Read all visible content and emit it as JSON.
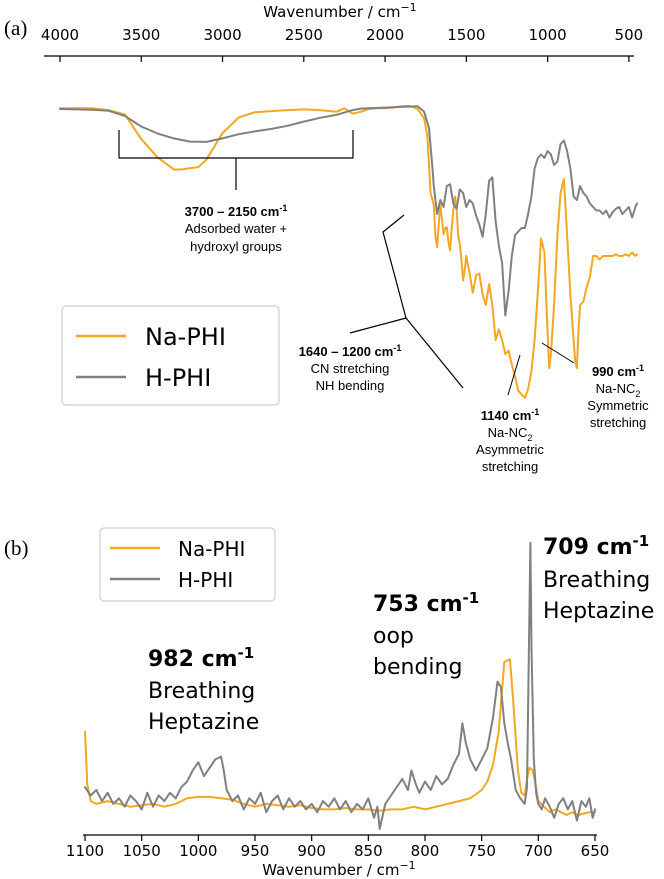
{
  "chart_data": [
    {
      "type": "line",
      "panel_label": "(a)",
      "xlabel": "Wavenumber / cm",
      "xlabel_sup": "−1",
      "xlim": [
        4000,
        450
      ],
      "x_ticks": [
        4000,
        3500,
        3000,
        2500,
        2000,
        1500,
        1000,
        500
      ],
      "x_tick_labels": [
        "4000",
        "3500",
        "3000",
        "2500",
        "2000",
        "1500",
        "1000",
        "500"
      ],
      "ylim": [
        0,
        1
      ],
      "legend": {
        "placement": "lower-left",
        "entries": [
          "Na-PHI",
          "H-PHI"
        ]
      },
      "series": [
        {
          "name": "Na-PHI",
          "color": "#F5A623",
          "x": [
            4000,
            3800,
            3700,
            3600,
            3500,
            3400,
            3300,
            3250,
            3200,
            3150,
            3100,
            3000,
            2900,
            2800,
            2700,
            2600,
            2500,
            2400,
            2300,
            2250,
            2200,
            2150,
            2100,
            2050,
            2000,
            1950,
            1900,
            1850,
            1800,
            1760,
            1740,
            1720,
            1700,
            1690,
            1680,
            1670,
            1660,
            1650,
            1640,
            1630,
            1620,
            1610,
            1600,
            1590,
            1580,
            1570,
            1560,
            1550,
            1540,
            1530,
            1520,
            1510,
            1500,
            1480,
            1460,
            1440,
            1420,
            1400,
            1380,
            1360,
            1340,
            1320,
            1300,
            1280,
            1260,
            1240,
            1220,
            1200,
            1180,
            1160,
            1140,
            1120,
            1100,
            1080,
            1060,
            1040,
            1020,
            1000,
            990,
            980,
            960,
            940,
            920,
            900,
            880,
            860,
            840,
            830,
            820,
            810,
            800,
            780,
            760,
            740,
            720,
            700,
            680,
            660,
            640,
            620,
            600,
            580,
            560,
            540,
            520,
            500,
            480,
            460,
            450
          ],
          "y": [
            0.862,
            0.862,
            0.857,
            0.844,
            0.774,
            0.722,
            0.687,
            0.687,
            0.691,
            0.694,
            0.715,
            0.791,
            0.836,
            0.851,
            0.854,
            0.857,
            0.859,
            0.857,
            0.852,
            0.862,
            0.847,
            0.852,
            0.86,
            0.862,
            0.862,
            0.864,
            0.868,
            0.869,
            0.86,
            0.833,
            0.784,
            0.62,
            0.586,
            0.493,
            0.466,
            0.531,
            0.588,
            0.544,
            0.502,
            0.52,
            0.522,
            0.479,
            0.456,
            0.519,
            0.571,
            0.61,
            0.576,
            0.498,
            0.475,
            0.428,
            0.37,
            0.4,
            0.44,
            0.39,
            0.335,
            0.385,
            0.39,
            0.33,
            0.3,
            0.36,
            0.3,
            0.2,
            0.23,
            0.2,
            0.16,
            0.17,
            0.13,
            0.095,
            0.055,
            0.045,
            0.035,
            0.06,
            0.11,
            0.2,
            0.34,
            0.49,
            0.45,
            0.22,
            0.12,
            0.16,
            0.3,
            0.5,
            0.62,
            0.66,
            0.5,
            0.33,
            0.2,
            0.14,
            0.12,
            0.23,
            0.3,
            0.31,
            0.35,
            0.38,
            0.44,
            0.44,
            0.43,
            0.44,
            0.44,
            0.44,
            0.44,
            0.445,
            0.44,
            0.44,
            0.445,
            0.44,
            0.45,
            0.44,
            0.445
          ]
        },
        {
          "name": "H-PHI",
          "color": "#808080",
          "x": [
            4000,
            3800,
            3700,
            3600,
            3500,
            3400,
            3300,
            3200,
            3100,
            3000,
            2900,
            2800,
            2700,
            2600,
            2500,
            2400,
            2300,
            2200,
            2150,
            2100,
            2000,
            1900,
            1800,
            1760,
            1730,
            1710,
            1700,
            1680,
            1660,
            1640,
            1620,
            1600,
            1580,
            1560,
            1540,
            1520,
            1500,
            1480,
            1460,
            1440,
            1420,
            1400,
            1380,
            1360,
            1340,
            1320,
            1300,
            1280,
            1260,
            1240,
            1220,
            1200,
            1180,
            1160,
            1140,
            1120,
            1100,
            1080,
            1060,
            1040,
            1020,
            1000,
            980,
            960,
            940,
            920,
            900,
            880,
            860,
            840,
            820,
            800,
            780,
            760,
            740,
            720,
            700,
            680,
            660,
            640,
            620,
            600,
            580,
            560,
            540,
            520,
            500,
            480,
            460,
            450
          ],
          "y": [
            0.86,
            0.858,
            0.855,
            0.84,
            0.81,
            0.79,
            0.776,
            0.767,
            0.766,
            0.776,
            0.788,
            0.796,
            0.803,
            0.812,
            0.824,
            0.835,
            0.843,
            0.857,
            0.861,
            0.862,
            0.864,
            0.866,
            0.868,
            0.852,
            0.805,
            0.7,
            0.64,
            0.56,
            0.6,
            0.58,
            0.64,
            0.645,
            0.59,
            0.575,
            0.63,
            0.62,
            0.58,
            0.6,
            0.59,
            0.555,
            0.53,
            0.495,
            0.56,
            0.655,
            0.665,
            0.54,
            0.47,
            0.42,
            0.27,
            0.34,
            0.44,
            0.5,
            0.51,
            0.52,
            0.52,
            0.56,
            0.61,
            0.69,
            0.72,
            0.73,
            0.72,
            0.74,
            0.73,
            0.7,
            0.71,
            0.76,
            0.77,
            0.74,
            0.69,
            0.61,
            0.6,
            0.64,
            0.62,
            0.61,
            0.59,
            0.58,
            0.57,
            0.57,
            0.56,
            0.57,
            0.55,
            0.565,
            0.575,
            0.58,
            0.56,
            0.57,
            0.58,
            0.55,
            0.58,
            0.59
          ]
        }
      ],
      "annotations": [
        {
          "heading": "3700 – 2150 cm",
          "heading_sup": "-1",
          "lines": [
            "Adsorbed water +",
            "hydroxyl groups"
          ]
        },
        {
          "heading": "1640 – 1200 cm",
          "heading_sup": "-1",
          "lines": [
            "CN stretching",
            "NH bending"
          ]
        },
        {
          "heading": "1140 cm",
          "heading_sup": "-1",
          "lines": [
            "Na-NC",
            "Asymmetric",
            "stretching"
          ],
          "line1_sub": "2"
        },
        {
          "heading": "990 cm",
          "heading_sup": "-1",
          "lines": [
            "Na-NC",
            "Symmetric",
            "stretching"
          ],
          "line1_sub": "2"
        }
      ]
    },
    {
      "type": "line",
      "panel_label": "(b)",
      "xlabel": "Wavenumber / cm",
      "xlabel_sup": "−1",
      "xlim": [
        1100,
        650
      ],
      "x_ticks": [
        1100,
        1050,
        1000,
        950,
        900,
        850,
        800,
        750,
        700,
        650
      ],
      "x_tick_labels": [
        "1100",
        "1050",
        "1000",
        "950",
        "900",
        "850",
        "800",
        "750",
        "700",
        "650"
      ],
      "ylim": [
        0,
        1
      ],
      "legend": {
        "placement": "top-left",
        "entries": [
          "Na-PHI",
          "H-PHI"
        ]
      },
      "series": [
        {
          "name": "Na-PHI",
          "color": "#F5A623",
          "x": [
            1100,
            1098,
            1095,
            1090,
            1080,
            1070,
            1060,
            1050,
            1040,
            1030,
            1020,
            1010,
            1000,
            990,
            980,
            970,
            960,
            950,
            940,
            930,
            920,
            910,
            900,
            890,
            880,
            870,
            860,
            850,
            840,
            830,
            820,
            810,
            800,
            790,
            780,
            770,
            760,
            750,
            745,
            740,
            735,
            730,
            725,
            722,
            718,
            715,
            712,
            710,
            708,
            705,
            702,
            700,
            695,
            690,
            685,
            680,
            675,
            670,
            665,
            660,
            655,
            650
          ],
          "y": [
            0.3,
            0.11,
            0.05,
            0.04,
            0.05,
            0.04,
            0.03,
            0.035,
            0.04,
            0.03,
            0.04,
            0.06,
            0.065,
            0.065,
            0.06,
            0.055,
            0.04,
            0.03,
            0.04,
            0.035,
            0.03,
            0.035,
            0.025,
            0.02,
            0.02,
            0.025,
            0.02,
            0.02,
            0.015,
            0.02,
            0.02,
            0.03,
            0.02,
            0.03,
            0.04,
            0.05,
            0.06,
            0.09,
            0.12,
            0.18,
            0.3,
            0.55,
            0.56,
            0.4,
            0.16,
            0.08,
            0.07,
            0.13,
            0.17,
            0.16,
            0.1,
            0.05,
            0.03,
            0.01,
            0.02,
            0.01,
            0.0,
            0.01,
            0.0,
            0.005,
            0.01,
            0.01
          ]
        },
        {
          "name": "H-PHI",
          "color": "#808080",
          "x": [
            1100,
            1095,
            1090,
            1085,
            1080,
            1075,
            1070,
            1065,
            1060,
            1055,
            1050,
            1045,
            1040,
            1035,
            1030,
            1025,
            1020,
            1015,
            1010,
            1005,
            1000,
            995,
            990,
            985,
            980,
            978,
            975,
            970,
            965,
            960,
            955,
            950,
            945,
            940,
            935,
            930,
            925,
            920,
            915,
            910,
            905,
            900,
            895,
            890,
            885,
            880,
            875,
            870,
            865,
            860,
            855,
            850,
            845,
            842,
            840,
            835,
            830,
            825,
            820,
            815,
            812,
            808,
            805,
            800,
            795,
            790,
            785,
            780,
            775,
            770,
            767,
            764,
            760,
            755,
            750,
            745,
            740,
            736,
            733,
            730,
            727,
            724,
            720,
            716,
            712,
            710,
            708,
            707,
            706,
            704,
            702,
            700,
            697,
            694,
            690,
            686,
            682,
            678,
            674,
            670,
            666,
            662,
            658,
            655,
            652,
            650
          ],
          "y": [
            0.1,
            0.07,
            0.09,
            0.05,
            0.08,
            0.04,
            0.06,
            0.03,
            0.07,
            0.05,
            0.02,
            0.08,
            0.03,
            0.07,
            0.05,
            0.08,
            0.06,
            0.1,
            0.12,
            0.16,
            0.19,
            0.14,
            0.17,
            0.2,
            0.21,
            0.17,
            0.09,
            0.05,
            0.07,
            0.02,
            0.06,
            0.04,
            0.08,
            0.01,
            0.05,
            0.07,
            0.02,
            0.06,
            0.03,
            0.05,
            0.02,
            0.04,
            0.01,
            0.05,
            0.03,
            0.06,
            0.02,
            0.05,
            0.01,
            0.04,
            0.02,
            0.06,
            -0.01,
            0.03,
            -0.05,
            0.04,
            0.07,
            0.1,
            0.13,
            0.09,
            0.16,
            0.11,
            0.08,
            0.12,
            0.09,
            0.14,
            0.11,
            0.13,
            0.18,
            0.22,
            0.33,
            0.26,
            0.2,
            0.16,
            0.2,
            0.24,
            0.35,
            0.48,
            0.46,
            0.33,
            0.26,
            0.2,
            0.09,
            0.06,
            0.04,
            0.1,
            0.7,
            0.98,
            0.6,
            0.2,
            0.08,
            0.04,
            0.02,
            0.06,
            0.03,
            -0.01,
            0.04,
            0.06,
            0.02,
            0.05,
            -0.02,
            0.05,
            0.03,
            0.06,
            -0.01,
            0.02
          ]
        }
      ],
      "annotations": [
        {
          "heading": "982 cm",
          "heading_sup": "-1",
          "lines": [
            "Breathing",
            "Heptazine"
          ]
        },
        {
          "heading": "753 cm",
          "heading_sup": "-1",
          "lines": [
            "oop",
            "bending"
          ]
        },
        {
          "heading": "709 cm",
          "heading_sup": "-1",
          "lines": [
            "Breathing",
            "Heptazine"
          ]
        }
      ]
    }
  ]
}
